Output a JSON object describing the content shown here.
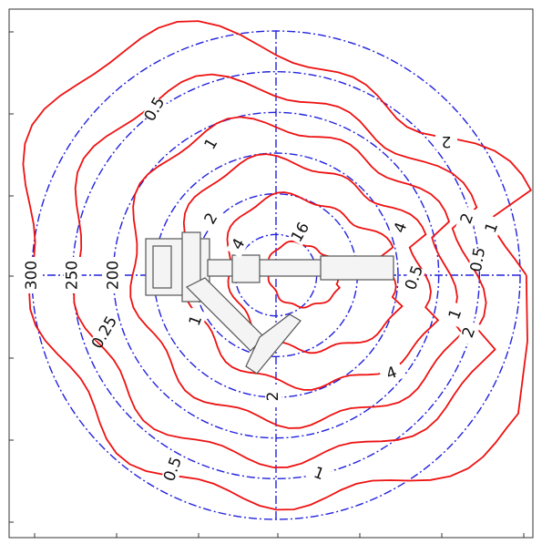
{
  "chart_data": {
    "type": "contour",
    "rlim": [
      0,
      300
    ],
    "rings": [
      50,
      100,
      150
    ],
    "rticks": [
      200,
      250,
      300
    ],
    "levels": [
      0.25,
      0.5,
      1,
      2,
      4,
      16
    ],
    "contour_labels": [
      0.5,
      1,
      2,
      2,
      4,
      16,
      4,
      2,
      1,
      0.5,
      0.5,
      0.25,
      1,
      2,
      4,
      2,
      1,
      0.5,
      1
    ]
  }
}
